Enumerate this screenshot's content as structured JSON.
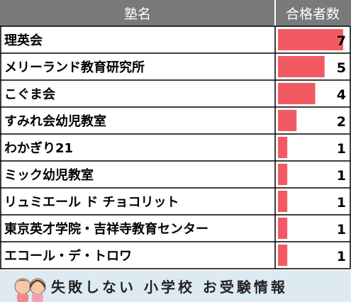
{
  "chart_data": {
    "type": "table",
    "columns": [
      "塾名",
      "合格者数"
    ],
    "rows": [
      {
        "name": "理英会",
        "value": 7
      },
      {
        "name": "メリーランド教育研究所",
        "value": 5
      },
      {
        "name": "こぐま会",
        "value": 4
      },
      {
        "name": "すみれ会幼児教室",
        "value": 2
      },
      {
        "name": "わかぎり21",
        "value": 1
      },
      {
        "name": "ミック幼児教室",
        "value": 1
      },
      {
        "name": "リュミエール ド チョコリット",
        "value": 1
      },
      {
        "name": "東京英才学院・吉祥寺教育センター",
        "value": 1
      },
      {
        "name": "エコール・デ・トロワ",
        "value": 1
      }
    ],
    "max_value": 7
  },
  "banner": {
    "text": "失敗しない 小学校 お受験情報"
  },
  "colors": {
    "header_bg": "#7a7a7a",
    "bar": "#f25a63",
    "banner_bg": "#ddeaf2",
    "grid": "#000000"
  }
}
